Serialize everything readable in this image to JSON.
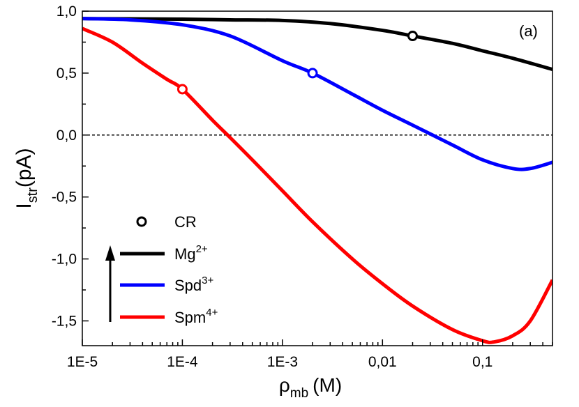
{
  "chart_data": {
    "type": "line",
    "panel_label": "(a)",
    "x_scale": "log",
    "xlabel": {
      "main": "ρ",
      "sub": "mb",
      "unit": "(M)"
    },
    "ylabel": {
      "main": "I",
      "sub": "str",
      "unit": "(pA)"
    },
    "xlim": [
      1e-05,
      0.5
    ],
    "ylim": [
      -1.7,
      1.0
    ],
    "x_ticks": [
      {
        "value": 1e-05,
        "label": "1E-5"
      },
      {
        "value": 0.0001,
        "label": "1E-4"
      },
      {
        "value": 0.001,
        "label": "1E-3"
      },
      {
        "value": 0.01,
        "label": "0,01"
      },
      {
        "value": 0.1,
        "label": "0,1"
      }
    ],
    "y_ticks": [
      {
        "value": 1.0,
        "label": "1,0"
      },
      {
        "value": 0.5,
        "label": "0,5"
      },
      {
        "value": 0.0,
        "label": "0,0"
      },
      {
        "value": -0.5,
        "label": "-0,5"
      },
      {
        "value": -1.0,
        "label": "-1,0"
      },
      {
        "value": -1.5,
        "label": "-1,5"
      }
    ],
    "reference_line": {
      "y": 0,
      "style": "dashed"
    },
    "series": [
      {
        "name": "Mg",
        "sup": "2+",
        "color": "#000000",
        "x": [
          1e-05,
          0.0001,
          0.0003,
          0.001,
          0.003,
          0.01,
          0.02,
          0.05,
          0.1,
          0.2,
          0.5
        ],
        "y": [
          0.94,
          0.935,
          0.93,
          0.925,
          0.9,
          0.845,
          0.8,
          0.74,
          0.68,
          0.62,
          0.53
        ],
        "cr": {
          "x": 0.02,
          "y": 0.8
        }
      },
      {
        "name": "Spd",
        "sup": "3+",
        "color": "#0000ff",
        "x": [
          1e-05,
          3e-05,
          0.0001,
          0.0003,
          0.001,
          0.002,
          0.005,
          0.01,
          0.02,
          0.05,
          0.1,
          0.2,
          0.3,
          0.5
        ],
        "y": [
          0.94,
          0.93,
          0.89,
          0.8,
          0.6,
          0.5,
          0.33,
          0.2,
          0.08,
          -0.08,
          -0.2,
          -0.27,
          -0.27,
          -0.22
        ],
        "cr": {
          "x": 0.002,
          "y": 0.5
        }
      },
      {
        "name": "Spm",
        "sup": "4+",
        "color": "#ff0000",
        "x": [
          1e-05,
          2e-05,
          4e-05,
          7e-05,
          0.0001,
          0.0002,
          0.0003,
          0.0005,
          0.001,
          0.002,
          0.005,
          0.01,
          0.02,
          0.05,
          0.1,
          0.13,
          0.2,
          0.3,
          0.5
        ],
        "y": [
          0.86,
          0.75,
          0.58,
          0.45,
          0.37,
          0.12,
          -0.02,
          -0.2,
          -0.45,
          -0.7,
          -1.0,
          -1.2,
          -1.38,
          -1.57,
          -1.66,
          -1.67,
          -1.62,
          -1.5,
          -1.17
        ],
        "cr": {
          "x": 0.0001,
          "y": 0.37
        }
      }
    ],
    "legend": {
      "placement": "bottom-left",
      "cr_label": "CR",
      "order": [
        0,
        1,
        2
      ]
    }
  }
}
